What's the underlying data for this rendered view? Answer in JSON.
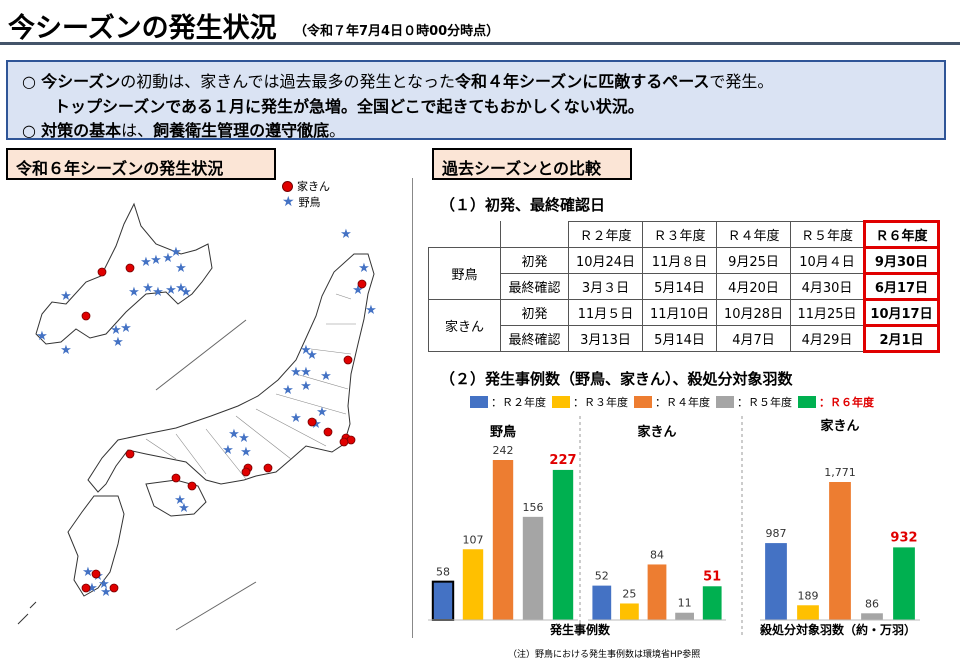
{
  "title": {
    "main": "今シーズンの発生状況",
    "sub": "（令和７年7月4日０時00分時点）"
  },
  "summary": {
    "line1_bullet": "○",
    "line1_a": "今シーズン",
    "line1_b": "の初動は、家きんでは過去最多の発生となった",
    "line1_c": "令和４年シーズンに匹敵するペース",
    "line1_d": "で発生。",
    "line2": "トップシーズンである１月に発生が急増。全国どこで起きてもおかしくない状況。",
    "line3_bullet": "○",
    "line3_a": "対策の基本",
    "line3_b": "は、",
    "line3_c": "飼養衛生管理の遵守徹底",
    "line3_d": "。"
  },
  "left_section": {
    "label": "令和６年シーズンの発生状況",
    "legend": {
      "poultry": "家きん",
      "wild_bird": "野鳥"
    }
  },
  "right_section": {
    "label": "過去シーズンとの比較",
    "subhead1": "（１）初発、最終確認日",
    "subhead2": "（２）発生事例数（野鳥、家きん）、殺処分対象羽数"
  },
  "table": {
    "headers": [
      "Ｒ２年度",
      "Ｒ３年度",
      "Ｒ４年度",
      "Ｒ５年度",
      "Ｒ６年度"
    ],
    "groups": [
      {
        "name": "野鳥",
        "rows": [
          {
            "label": "初発",
            "values": [
              "10月24日",
              "11月８日",
              "9月25日",
              "10月４日",
              "9月30日"
            ]
          },
          {
            "label": "最終確認",
            "values": [
              "3月３日",
              "5月14日",
              "4月20日",
              "4月30日",
              "6月17日"
            ]
          }
        ]
      },
      {
        "name": "家きん",
        "rows": [
          {
            "label": "初発",
            "values": [
              "11月５日",
              "11月10日",
              "10月28日",
              "11月25日",
              "10月17日"
            ]
          },
          {
            "label": "最終確認",
            "values": [
              "3月13日",
              "5月14日",
              "4月7日",
              "4月29日",
              "2月1日"
            ]
          }
        ]
      }
    ]
  },
  "chart_legend": [
    {
      "label": "：Ｒ２年度",
      "color": "#4472c4"
    },
    {
      "label": "：Ｒ３年度",
      "color": "#ffc000"
    },
    {
      "label": "：Ｒ４年度",
      "color": "#ed7d31"
    },
    {
      "label": "：Ｒ５年度",
      "color": "#a5a5a5"
    },
    {
      "label": "：Ｒ６年度",
      "color": "#00b050",
      "highlight_color": "#e00000"
    }
  ],
  "chart_data": [
    {
      "type": "bar",
      "title": "野鳥",
      "categories": [
        "Ｒ２年度",
        "Ｒ３年度",
        "Ｒ４年度",
        "Ｒ５年度",
        "Ｒ６年度"
      ],
      "values": [
        58,
        107,
        242,
        156,
        227
      ],
      "labels": [
        "58",
        "107",
        "242",
        "156",
        "227"
      ]
    },
    {
      "type": "bar",
      "title": "家きん",
      "categories": [
        "Ｒ２年度",
        "Ｒ３年度",
        "Ｒ４年度",
        "Ｒ５年度",
        "Ｒ６年度"
      ],
      "values": [
        52,
        25,
        84,
        11,
        51
      ],
      "labels": [
        "52",
        "25",
        "84",
        "11",
        "51"
      ]
    },
    {
      "type": "bar",
      "title": "家きん",
      "categories": [
        "Ｒ２年度",
        "Ｒ３年度",
        "Ｒ４年度",
        "Ｒ５年度",
        "Ｒ６年度"
      ],
      "values": [
        987,
        189,
        1771,
        86,
        932
      ],
      "labels": [
        "987",
        "189",
        "1,771",
        "86",
        "932"
      ]
    }
  ],
  "chart_axis_labels": {
    "cases": "発生事例数",
    "culled": "殺処分対象羽数（約・万羽）"
  },
  "note": "（注）野鳥における発生事例数は環境省HP参照",
  "colors": {
    "r6_label": "#e00000",
    "summary_bg": "#dae3f3",
    "section_bg": "#fbe5d6"
  }
}
